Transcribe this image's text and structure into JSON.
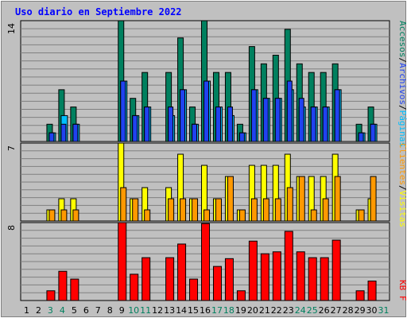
{
  "chart_data": {
    "type": "bar",
    "title": "Uso diario en Septiembre 2022",
    "days": [
      "1",
      "2",
      "3",
      "4",
      "5",
      "6",
      "7",
      "8",
      "9",
      "10",
      "11",
      "12",
      "13",
      "14",
      "15",
      "16",
      "17",
      "18",
      "19",
      "20",
      "21",
      "22",
      "23",
      "24",
      "25",
      "26",
      "27",
      "28",
      "29",
      "30",
      "31"
    ],
    "weekend_days": [
      "3",
      "4",
      "10",
      "11",
      "17",
      "18",
      "24",
      "25",
      "31"
    ],
    "colors": {
      "title": "#0000ff",
      "accesos": "#00805f",
      "archivos": "#00bfff",
      "paginas": "#2042f0",
      "visitas": "#ffff00",
      "clientes": "#ff9900",
      "kb": "#ff0000",
      "weekend_text": "#00805f",
      "weekday_text": "#000000"
    },
    "panels": [
      {
        "id": "hits",
        "max_label": "14",
        "ylim": [
          0,
          14
        ],
        "series": [
          {
            "name": "Accesos",
            "values": [
              0,
              0,
              2,
              6,
              4,
              0,
              0,
              0,
              14,
              5,
              8,
              0,
              8,
              12,
              4,
              14,
              8,
              8,
              2,
              11,
              9,
              10,
              13,
              9,
              8,
              8,
              9,
              0,
              2,
              4,
              0
            ]
          },
          {
            "name": "Archivos",
            "values": [
              0,
              0,
              1,
              3,
              2,
              0,
              0,
              0,
              7,
              3,
              4,
              0,
              3,
              6,
              2,
              7,
              4,
              3,
              1,
              6,
              5,
              5,
              6,
              4,
              4,
              4,
              6,
              0,
              1,
              2,
              0
            ]
          },
          {
            "name": "Páginas",
            "values": [
              0,
              0,
              1,
              2,
              2,
              0,
              0,
              0,
              7,
              3,
              4,
              0,
              4,
              6,
              2,
              7,
              4,
              4,
              1,
              6,
              5,
              5,
              7,
              5,
              4,
              4,
              6,
              0,
              1,
              2,
              0
            ]
          }
        ]
      },
      {
        "id": "visits",
        "max_label": "7",
        "ylim": [
          0,
          7
        ],
        "series": [
          {
            "name": "Visitas",
            "values": [
              0,
              0,
              1,
              2,
              2,
              0,
              0,
              0,
              7,
              2,
              3,
              0,
              3,
              6,
              2,
              5,
              2,
              4,
              1,
              5,
              5,
              5,
              6,
              4,
              4,
              4,
              6,
              0,
              1,
              2,
              0
            ]
          },
          {
            "name": "Clientes",
            "values": [
              0,
              0,
              1,
              1,
              1,
              0,
              0,
              0,
              3,
              2,
              1,
              0,
              2,
              2,
              2,
              1,
              2,
              4,
              1,
              2,
              2,
              2,
              3,
              4,
              1,
              2,
              4,
              0,
              1,
              4,
              0
            ]
          }
        ]
      },
      {
        "id": "kb",
        "max_label": "8",
        "ylim": [
          0,
          8
        ],
        "series": [
          {
            "name": "KB F",
            "values": [
              0,
              0,
              1,
              3,
              2.2,
              0,
              0,
              0,
              8,
              2.7,
              4.4,
              0,
              4.4,
              5.8,
              2.2,
              7.9,
              3.5,
              4.3,
              1,
              6.1,
              4.8,
              5,
              7.1,
              5,
              4.4,
              4.4,
              6.2,
              0,
              1,
              2,
              0
            ]
          }
        ]
      }
    ],
    "right_labels": {
      "hits": [
        "Accesos",
        "/",
        "Archivos",
        "/",
        "Páginas"
      ],
      "visits": [
        "Clientes",
        "/",
        "Visitas"
      ],
      "kb": [
        "KB F"
      ]
    }
  }
}
